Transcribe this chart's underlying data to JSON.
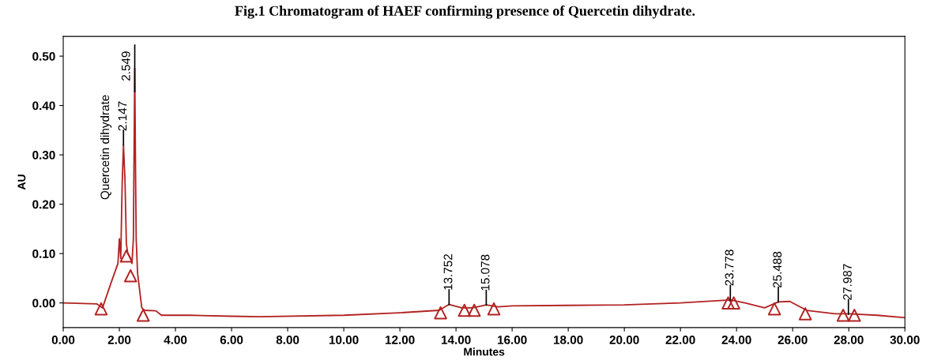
{
  "chart_data": {
    "type": "line",
    "title": "Fig.1 Chromatogram of HAEF confirming presence of Quercetin dihydrate.",
    "xlabel": "Minutes",
    "ylabel": "AU",
    "xlim": [
      0,
      30
    ],
    "ylim": [
      -0.05,
      0.54
    ],
    "xticks": [
      {
        "value": 0,
        "label": "0.00"
      },
      {
        "value": 2,
        "label": "2.00"
      },
      {
        "value": 4,
        "label": "4.00"
      },
      {
        "value": 6,
        "label": "6.00"
      },
      {
        "value": 8,
        "label": "8.00"
      },
      {
        "value": 10,
        "label": "10.00"
      },
      {
        "value": 12,
        "label": "12.00"
      },
      {
        "value": 14,
        "label": "14.00"
      },
      {
        "value": 16,
        "label": "16.00"
      },
      {
        "value": 18,
        "label": "18.00"
      },
      {
        "value": 20,
        "label": "20.00"
      },
      {
        "value": 22,
        "label": "22.00"
      },
      {
        "value": 24,
        "label": "24.00"
      },
      {
        "value": 26,
        "label": "26.00"
      },
      {
        "value": 28,
        "label": "28.00"
      },
      {
        "value": 30,
        "label": "30.00"
      }
    ],
    "yticks": [
      {
        "value": 0,
        "label": "0.00"
      },
      {
        "value": 0.1,
        "label": "0.10"
      },
      {
        "value": 0.2,
        "label": "0.20"
      },
      {
        "value": 0.3,
        "label": "0.30"
      },
      {
        "value": 0.4,
        "label": "0.40"
      },
      {
        "value": 0.5,
        "label": "0.50"
      }
    ],
    "grid": false,
    "series": [
      {
        "color": "#b22222",
        "marker": "none",
        "x": [
          0,
          1.2,
          1.4,
          1.7,
          1.95,
          2.0,
          2.05,
          2.1,
          2.147,
          2.2,
          2.25,
          2.3,
          2.4,
          2.45,
          2.5,
          2.549,
          2.58,
          2.6,
          2.65,
          2.8,
          2.9,
          3.3,
          3.5,
          4.5,
          6,
          7,
          10,
          12,
          13.4,
          13.752,
          14.2,
          14.6,
          15.078,
          15.5,
          16,
          18,
          20,
          22,
          23.778,
          24.3,
          25.0,
          25.488,
          25.9,
          26.5,
          27.5,
          28,
          29,
          30
        ],
        "values": [
          0.0,
          -0.002,
          -0.01,
          0.04,
          0.08,
          0.13,
          0.09,
          0.24,
          0.32,
          0.25,
          0.12,
          0.1,
          0.09,
          0.08,
          0.13,
          0.475,
          0.25,
          0.13,
          0.06,
          -0.01,
          -0.015,
          -0.016,
          -0.025,
          -0.025,
          -0.027,
          -0.028,
          -0.025,
          -0.02,
          -0.015,
          -0.003,
          -0.01,
          -0.01,
          -0.004,
          -0.008,
          -0.006,
          -0.005,
          -0.004,
          0.0,
          0.006,
          0.0,
          -0.01,
          0.002,
          0.003,
          -0.015,
          -0.022,
          -0.022,
          -0.025,
          -0.03
        ]
      },
      {
        "type": "scatter",
        "color": "#b22222",
        "marker": "triangle",
        "x": [
          1.35,
          2.25,
          2.4,
          2.85,
          13.45,
          14.3,
          14.65,
          15.35,
          23.7,
          23.9,
          25.35,
          26.45,
          27.8,
          28.2
        ],
        "values": [
          -0.012,
          0.095,
          0.055,
          -0.025,
          -0.02,
          -0.015,
          -0.015,
          -0.012,
          0.0,
          0.0,
          -0.012,
          -0.022,
          -0.025,
          -0.025
        ]
      }
    ],
    "annotations": [
      {
        "text": "2.147",
        "x": 2.147,
        "y": 0.32
      },
      {
        "text": "Quercetin dihydrate",
        "x": 2.147,
        "y": 0.32
      },
      {
        "text": "2.549",
        "x": 2.549,
        "y": 0.475
      },
      {
        "text": "13.752",
        "x": 13.752,
        "y": -0.003
      },
      {
        "text": "15.078",
        "x": 15.078,
        "y": -0.004
      },
      {
        "text": "23.778",
        "x": 23.778,
        "y": 0.006
      },
      {
        "text": "25.488",
        "x": 25.488,
        "y": 0.002
      },
      {
        "text": "27.987",
        "x": 27.987,
        "y": -0.023
      }
    ]
  }
}
